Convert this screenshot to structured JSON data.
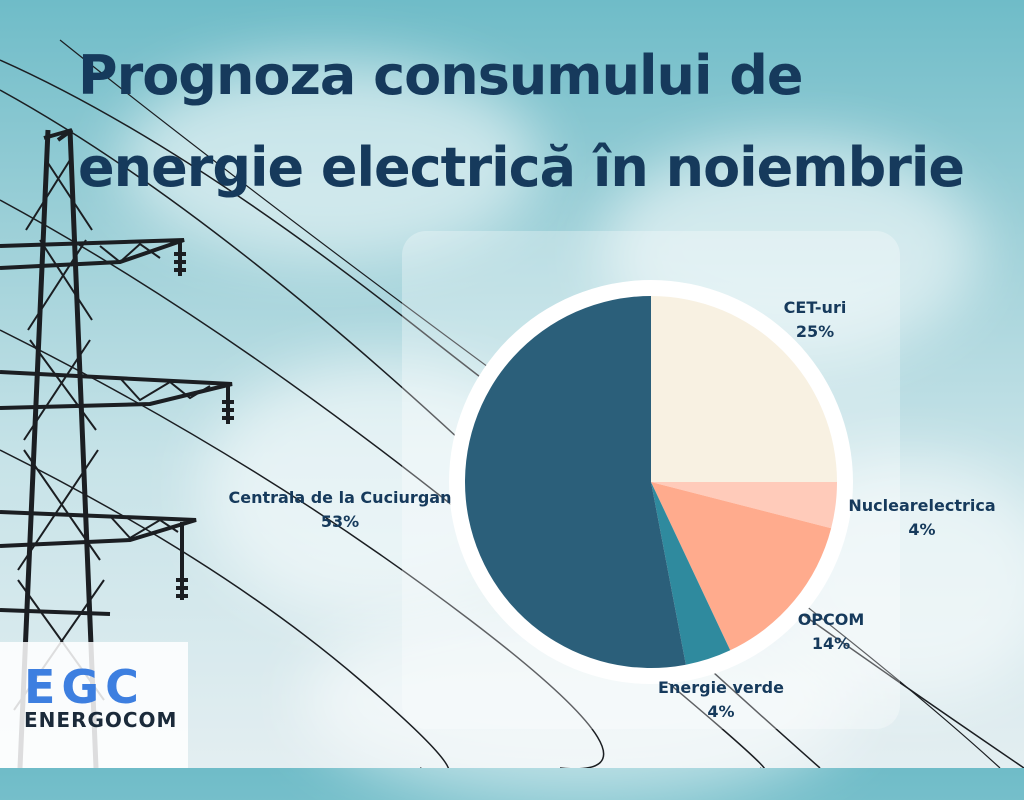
{
  "title_lines": [
    "Prognoza consumului de",
    "energie electrică în noiembrie"
  ],
  "colors": {
    "title": "#163a5c",
    "label": "#163a5c",
    "ring": "#ffffff",
    "panel": "rgba(255,255,255,0.30)",
    "tower": "#1b1e22",
    "logo_mark": "#3d7fe0",
    "logo_text": "#1b2a3a"
  },
  "logo": {
    "mark": "EGC",
    "name": "ENERGOCOM"
  },
  "chart_data": {
    "type": "pie",
    "title": "Prognoza consumului de energie electrică în noiembrie",
    "start": "12 o'clock",
    "direction": "clockwise",
    "slices": [
      {
        "label": "CET-uri",
        "value": 25,
        "display": "25%",
        "color": "#f8f1e2"
      },
      {
        "label": "Nuclearelectrica",
        "value": 4,
        "display": "4%",
        "color": "#ffcbba"
      },
      {
        "label": "OPCOM",
        "value": 14,
        "display": "14%",
        "color": "#ffab8d"
      },
      {
        "label": "Energie verde",
        "value": 4,
        "display": "4%",
        "color": "#2f8a9e"
      },
      {
        "label": "Centrala de la Cuciurgan",
        "value": 53,
        "display": "53%",
        "color": "#2b5f7a"
      }
    ]
  }
}
